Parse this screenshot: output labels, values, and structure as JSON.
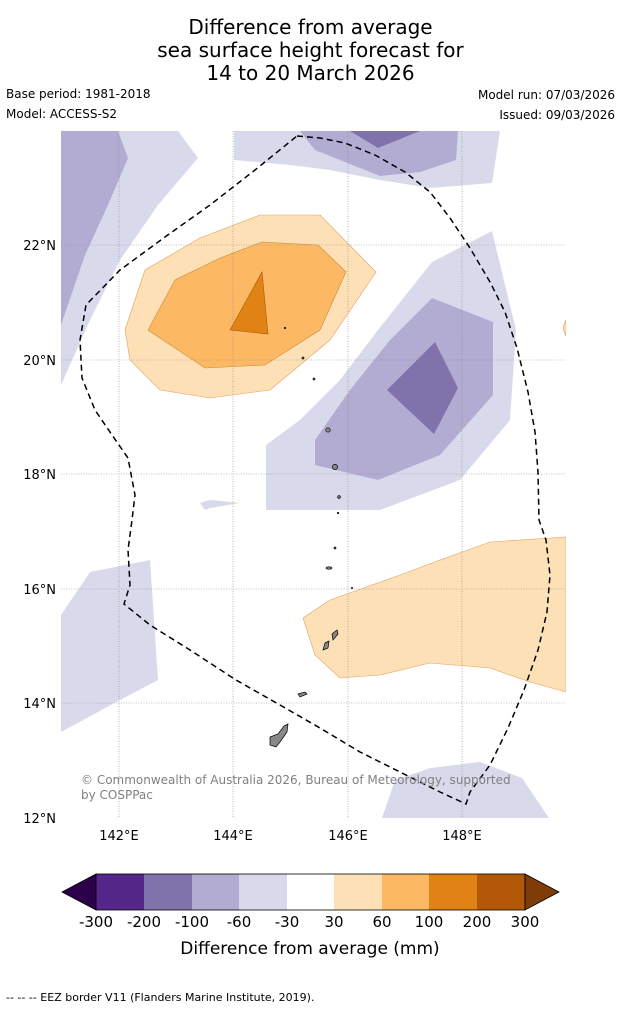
{
  "title": {
    "line1": "Difference from average",
    "line2": "sea surface height forecast for",
    "line3": "14 to 20 March 2026"
  },
  "meta": {
    "base_period": "Base period: 1981-2018",
    "model": "Model: ACCESS-S2",
    "model_run": "Model run: 07/03/2026",
    "issued": "Issued: 09/03/2026"
  },
  "map": {
    "lat_labels": [
      "22°N",
      "20°N",
      "18°N",
      "16°N",
      "14°N",
      "12°N"
    ],
    "lon_labels": [
      "142°E",
      "144°E",
      "146°E",
      "148°E"
    ],
    "copyright_line1": "© Commonwealth of Australia 2026, Bureau of Meteorology, supported",
    "copyright_line2": "by COSPPac"
  },
  "legend": {
    "ticks": [
      "-300",
      "-200",
      "-100",
      "-60",
      "-30",
      "30",
      "60",
      "100",
      "200",
      "300"
    ],
    "label": "Difference from average (mm)",
    "colors": [
      "#2d004b",
      "#542788",
      "#8073ac",
      "#b2abd2",
      "#d8daeb",
      "#ffffff",
      "#fee0b6",
      "#fdb863",
      "#e08214",
      "#b35806",
      "#7f3b08"
    ]
  },
  "footer": {
    "eez_note": "--  --  -- EEZ border V11 (Flanders Marine Institute, 2019)."
  }
}
